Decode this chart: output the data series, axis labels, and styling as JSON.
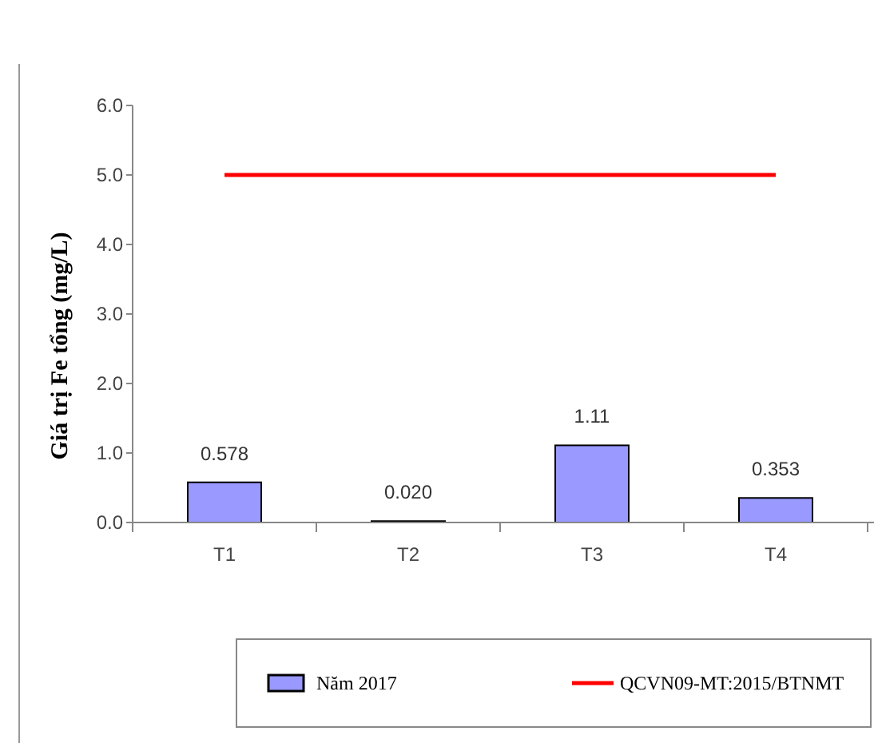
{
  "chart_data": {
    "type": "bar",
    "ylabel": "Giá trị Fe tổng (mg/L)",
    "categories": [
      "T1",
      "T2",
      "T3",
      "T4"
    ],
    "series": [
      {
        "name": "Năm 2017",
        "color": "#9999ff",
        "values": [
          0.578,
          0.02,
          1.11,
          0.353
        ],
        "value_labels": [
          "0.578",
          "0.020",
          "1.11",
          "0.353"
        ]
      },
      {
        "name": "QCVN09-MT:2015/BTNMT",
        "type": "line",
        "color": "#ff0000",
        "values": [
          5,
          5,
          5,
          5
        ]
      }
    ],
    "ylim": [
      0,
      6
    ],
    "yticks": [
      {
        "value": 0,
        "label": "0.0"
      },
      {
        "value": 1,
        "label": "1.0"
      },
      {
        "value": 2,
        "label": "2.0"
      },
      {
        "value": 3,
        "label": "3.0"
      },
      {
        "value": 4,
        "label": "4.0"
      },
      {
        "value": 5,
        "label": "5.0"
      },
      {
        "value": 6,
        "label": "6.0"
      }
    ],
    "legend": "bottom",
    "grid": false
  }
}
